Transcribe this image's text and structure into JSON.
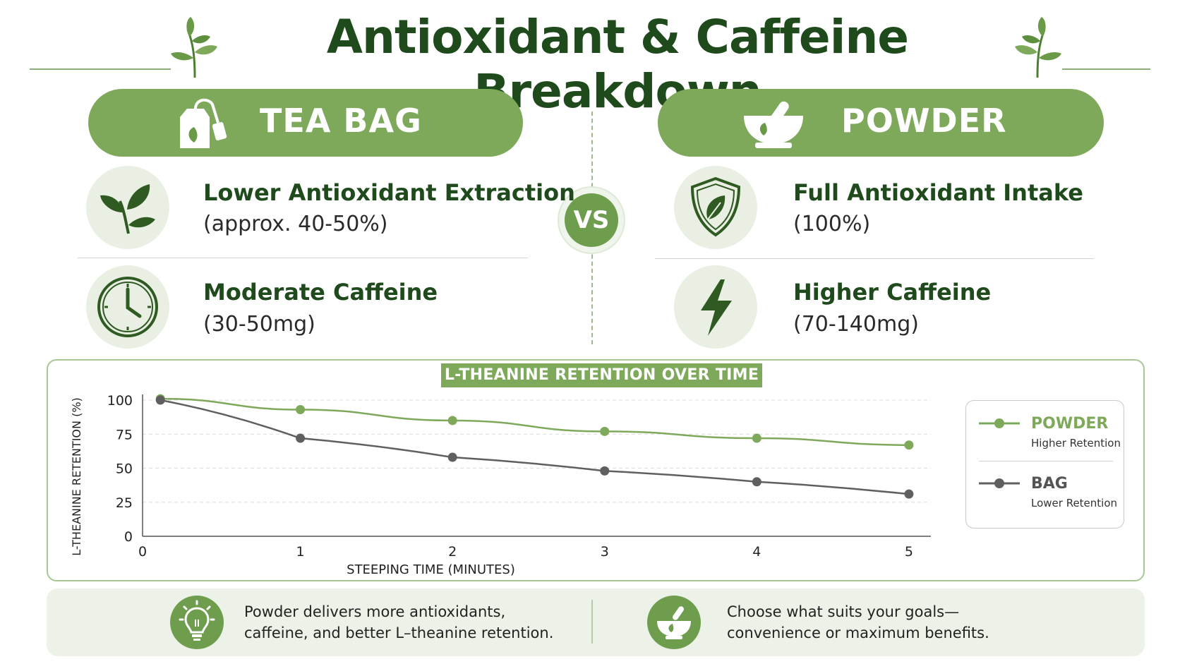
{
  "title": "Antioxidant & Caffeine Breakdown",
  "tea_bag": {
    "label": "TEA BAG",
    "features": [
      {
        "icon": "leaf-icon",
        "title": "Lower Antioxidant Extraction",
        "detail": "(approx. 40-50%)"
      },
      {
        "icon": "clock-icon",
        "title": "Moderate Caffeine",
        "detail": "(30-50mg)"
      }
    ]
  },
  "powder": {
    "label": "POWDER",
    "features": [
      {
        "icon": "shield-leaf-icon",
        "title": "Full Antioxidant Intake",
        "detail": "(100%)"
      },
      {
        "icon": "lightning-icon",
        "title": "Higher Caffeine",
        "detail": "(70-140mg)"
      }
    ]
  },
  "vs_label": "VS",
  "chart_data": {
    "type": "line",
    "title": "L-THEANINE RETENTION OVER TIME",
    "xlabel": "STEEPING TIME (MINUTES)",
    "ylabel": "L-THEANINE RETENTION (%)",
    "x_ticks": [
      "0",
      "1",
      "2",
      "3",
      "4",
      "5"
    ],
    "y_ticks": [
      "0",
      "25",
      "50",
      "75",
      "100"
    ],
    "xlim": [
      0,
      5
    ],
    "ylim": [
      0,
      100
    ],
    "grid": "horizontal dashed",
    "legend_position": "right",
    "series": [
      {
        "name": "POWDER",
        "description": "Higher Retention",
        "color": "#7ea95a",
        "x": [
          0.08,
          1,
          2,
          3,
          4,
          5
        ],
        "y": [
          101,
          93,
          85,
          77,
          72,
          67
        ]
      },
      {
        "name": "BAG",
        "description": "Lower Retention",
        "color": "#5f5f5f",
        "x": [
          0.08,
          1,
          2,
          3,
          4,
          5
        ],
        "y": [
          100,
          72,
          58,
          48,
          40,
          31
        ]
      }
    ]
  },
  "footer": {
    "left_line1": "Powder delivers more antioxidants,",
    "left_line2": "caffeine, and better L–theanine retention.",
    "right_line1": "Choose what suits your goals—",
    "right_line2": "convenience or maximum benefits.",
    "left_icon": "lightbulb-icon",
    "right_icon": "mortar-pestle-icon"
  },
  "colors": {
    "accent": "#7ea95a",
    "dark_green": "#1e4a1c",
    "bag_line": "#5f5f5f"
  }
}
